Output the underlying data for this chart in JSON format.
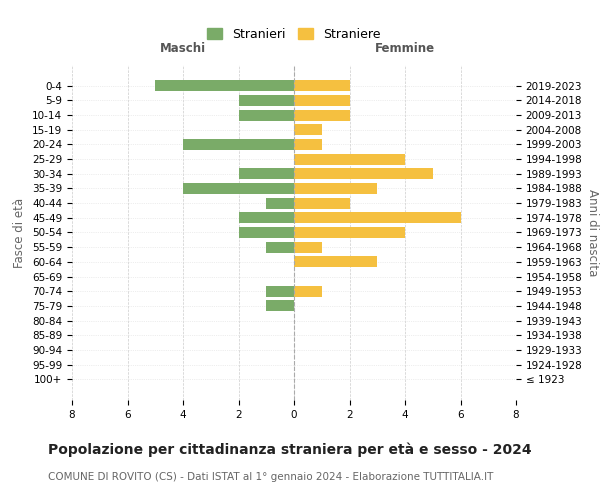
{
  "age_groups": [
    "100+",
    "95-99",
    "90-94",
    "85-89",
    "80-84",
    "75-79",
    "70-74",
    "65-69",
    "60-64",
    "55-59",
    "50-54",
    "45-49",
    "40-44",
    "35-39",
    "30-34",
    "25-29",
    "20-24",
    "15-19",
    "10-14",
    "5-9",
    "0-4"
  ],
  "birth_years": [
    "≤ 1923",
    "1924-1928",
    "1929-1933",
    "1934-1938",
    "1939-1943",
    "1944-1948",
    "1949-1953",
    "1954-1958",
    "1959-1963",
    "1964-1968",
    "1969-1973",
    "1974-1978",
    "1979-1983",
    "1984-1988",
    "1989-1993",
    "1994-1998",
    "1999-2003",
    "2004-2008",
    "2009-2013",
    "2014-2018",
    "2019-2023"
  ],
  "stranieri": [
    0,
    0,
    0,
    0,
    0,
    1,
    1,
    0,
    0,
    1,
    2,
    2,
    1,
    4,
    2,
    0,
    4,
    0,
    2,
    2,
    5
  ],
  "straniere": [
    0,
    0,
    0,
    0,
    0,
    0,
    1,
    0,
    3,
    1,
    4,
    6,
    2,
    3,
    5,
    4,
    1,
    1,
    2,
    2,
    2
  ],
  "color_stranieri": "#7aab68",
  "color_straniere": "#f5c040",
  "background_color": "#ffffff",
  "grid_color_x": "#cccccc",
  "grid_color_y": "#dddddd",
  "title": "Popolazione per cittadinanza straniera per età e sesso - 2024",
  "subtitle": "COMUNE DI ROVITO (CS) - Dati ISTAT al 1° gennaio 2024 - Elaborazione TUTTITALIA.IT",
  "xlabel_left": "Maschi",
  "xlabel_right": "Femmine",
  "ylabel_left": "Fasce di età",
  "ylabel_right": "Anni di nascita",
  "legend_stranieri": "Stranieri",
  "legend_straniere": "Straniere",
  "xlim": 8,
  "title_fontsize": 10,
  "subtitle_fontsize": 7.5,
  "label_fontsize": 9,
  "tick_fontsize": 7.5,
  "axlabel_fontsize": 8.5
}
